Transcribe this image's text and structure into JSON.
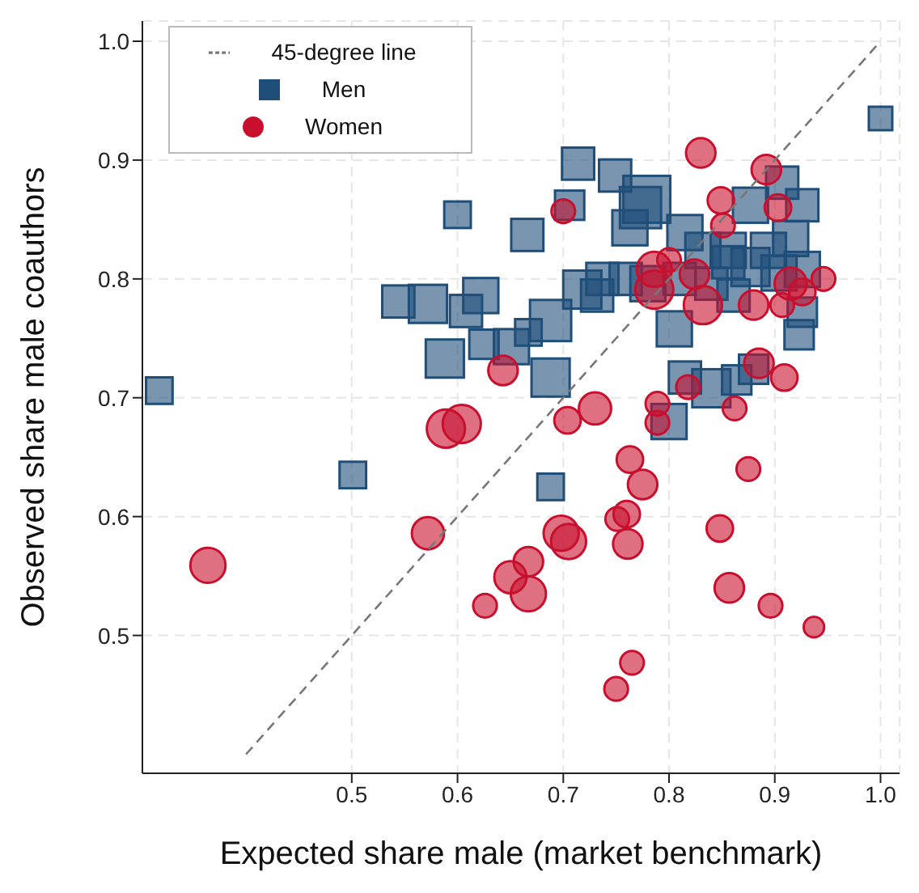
{
  "chart_data": {
    "type": "bubble",
    "xlabel": "Expected share male (market benchmark)",
    "ylabel": "Observed share male coauthors",
    "xlim": [
      0.302,
      1.018
    ],
    "ylim": [
      0.384,
      1.017
    ],
    "xticks": [
      0.5,
      0.6,
      0.7,
      0.8,
      0.9,
      {
        "value": 1,
        "label": "1.0"
      }
    ],
    "yticks": [
      0.5,
      0.6,
      0.7,
      0.8,
      0.9,
      {
        "value": 1,
        "label": "1.0"
      }
    ],
    "grid": true,
    "legend": "top left",
    "series": [
      {
        "name": "Men",
        "type": "bubble",
        "marker": "square",
        "color": "#1f4e79",
        "x": [
          0.318,
          0.501,
          0.6,
          0.666,
          0.714,
          0.706,
          0.749,
          0.779,
          0.773,
          0.763,
          0.544,
          0.572,
          0.622,
          0.608,
          0.588,
          0.625,
          0.651,
          0.667,
          0.688,
          0.688,
          0.688,
          0.718,
          0.737,
          0.759,
          0.732,
          0.78,
          0.805,
          0.8,
          0.815,
          0.84,
          0.864,
          0.88,
          0.815,
          0.832,
          0.856,
          0.877,
          0.907,
          0.926,
          0.894,
          0.915,
          0.877,
          0.904,
          0.926,
          0.926,
          0.923,
          0.861,
          0.856,
          1.0,
          0.81,
          0.84
        ],
        "values": [
          0.706,
          0.635,
          0.854,
          0.837,
          0.897,
          0.862,
          0.887,
          0.867,
          0.86,
          0.843,
          0.781,
          0.779,
          0.786,
          0.773,
          0.733,
          0.745,
          0.743,
          0.755,
          0.765,
          0.717,
          0.625,
          0.791,
          0.8,
          0.8,
          0.786,
          0.796,
          0.758,
          0.68,
          0.717,
          0.708,
          0.715,
          0.724,
          0.839,
          0.824,
          0.824,
          0.862,
          0.881,
          0.862,
          0.824,
          0.834,
          0.81,
          0.805,
          0.808,
          0.772,
          0.753,
          0.786,
          0.814,
          0.935,
          0.8,
          0.796
        ],
        "sizes": [
          0.32,
          0.32,
          0.32,
          0.47,
          0.47,
          0.39,
          0.47,
          1,
          0.77,
          0.56,
          0.47,
          0.66,
          0.56,
          0.47,
          0.66,
          0.39,
          0.56,
          0.32,
          0.77,
          0.66,
          0.32,
          0.66,
          0.47,
          0.47,
          0.47,
          0.56,
          0.56,
          0.56,
          0.47,
          0.66,
          0.39,
          0.39,
          0.56,
          0.56,
          0.56,
          0.56,
          0.47,
          0.47,
          0.56,
          0.56,
          0.66,
          0.56,
          0.56,
          0.39,
          0.39,
          0.47,
          0.47,
          0.25,
          0.47,
          0.47
        ]
      },
      {
        "name": "Women",
        "type": "bubble",
        "marker": "circle",
        "color": "#c8102e",
        "x": [
          0.364,
          0.7,
          0.83,
          0.892,
          0.849,
          0.903,
          0.851,
          0.8,
          0.786,
          0.786,
          0.824,
          0.832,
          0.88,
          0.915,
          0.907,
          0.926,
          0.946,
          0.885,
          0.909,
          0.818,
          0.862,
          0.789,
          0.789,
          0.643,
          0.589,
          0.604,
          0.704,
          0.73,
          0.763,
          0.775,
          0.875,
          0.572,
          0.751,
          0.76,
          0.761,
          0.698,
          0.705,
          0.848,
          0.667,
          0.65,
          0.667,
          0.626,
          0.857,
          0.896,
          0.937,
          0.765,
          0.75
        ],
        "values": [
          0.559,
          0.857,
          0.906,
          0.892,
          0.866,
          0.86,
          0.845,
          0.816,
          0.808,
          0.791,
          0.804,
          0.778,
          0.778,
          0.796,
          0.778,
          0.789,
          0.8,
          0.729,
          0.717,
          0.709,
          0.691,
          0.695,
          0.679,
          0.723,
          0.674,
          0.678,
          0.681,
          0.691,
          0.648,
          0.627,
          0.64,
          0.586,
          0.598,
          0.602,
          0.577,
          0.586,
          0.579,
          0.59,
          0.562,
          0.549,
          0.535,
          0.525,
          0.54,
          0.525,
          0.507,
          0.477,
          0.455
        ],
        "sizes": [
          0.44,
          0.2,
          0.31,
          0.31,
          0.25,
          0.25,
          0.2,
          0.2,
          0.44,
          0.52,
          0.31,
          0.52,
          0.31,
          0.37,
          0.2,
          0.25,
          0.2,
          0.31,
          0.25,
          0.2,
          0.2,
          0.2,
          0.2,
          0.31,
          0.52,
          0.52,
          0.25,
          0.37,
          0.25,
          0.31,
          0.2,
          0.37,
          0.2,
          0.25,
          0.31,
          0.44,
          0.44,
          0.25,
          0.31,
          0.37,
          0.44,
          0.2,
          0.31,
          0.2,
          0.15,
          0.2,
          0.2
        ]
      },
      {
        "name": "45-degree line",
        "type": "line",
        "color": "#777777",
        "line_style": "dashed",
        "x": [
          0.4,
          1.0
        ],
        "values": [
          0.4,
          1.0
        ]
      }
    ]
  }
}
